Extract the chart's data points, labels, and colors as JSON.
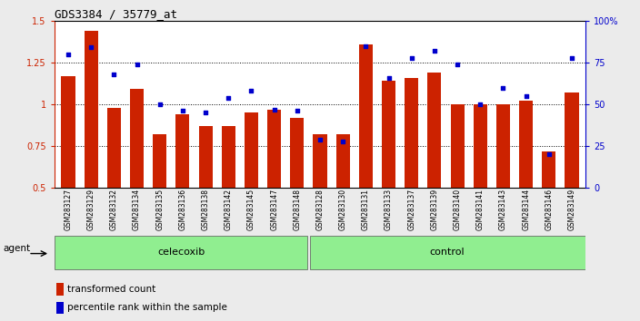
{
  "title": "GDS3384 / 35779_at",
  "samples": [
    "GSM283127",
    "GSM283129",
    "GSM283132",
    "GSM283134",
    "GSM283135",
    "GSM283136",
    "GSM283138",
    "GSM283142",
    "GSM283145",
    "GSM283147",
    "GSM283148",
    "GSM283128",
    "GSM283130",
    "GSM283131",
    "GSM283133",
    "GSM283137",
    "GSM283139",
    "GSM283140",
    "GSM283141",
    "GSM283143",
    "GSM283144",
    "GSM283146",
    "GSM283149"
  ],
  "bar_values": [
    1.17,
    1.44,
    0.98,
    1.09,
    0.82,
    0.94,
    0.87,
    0.87,
    0.95,
    0.97,
    0.92,
    0.82,
    0.82,
    1.36,
    1.14,
    1.16,
    1.19,
    1.0,
    1.0,
    1.0,
    1.02,
    0.72,
    1.07
  ],
  "dot_values": [
    80,
    84,
    68,
    74,
    50,
    46,
    45,
    54,
    58,
    47,
    46,
    29,
    28,
    85,
    66,
    78,
    82,
    74,
    50,
    60,
    55,
    20,
    78
  ],
  "group_labels": [
    "celecoxib",
    "control"
  ],
  "celecoxib_count": 11,
  "control_count": 12,
  "bar_color": "#cc2200",
  "dot_color": "#0000cc",
  "ylim_left": [
    0.5,
    1.5
  ],
  "ylim_right": [
    0,
    100
  ],
  "yticks_left": [
    0.5,
    0.75,
    1.0,
    1.25,
    1.5
  ],
  "ytick_labels_left": [
    "0.5",
    "0.75",
    "1",
    "1.25",
    "1.5"
  ],
  "yticks_right": [
    0,
    25,
    50,
    75,
    100
  ],
  "ytick_labels_right": [
    "0",
    "25",
    "50",
    "75",
    "100%"
  ],
  "grid_lines": [
    0.75,
    1.0,
    1.25
  ],
  "bg_color": "#ebebeb",
  "plot_bg": "#ffffff",
  "legend_items": [
    "transformed count",
    "percentile rank within the sample"
  ],
  "agent_label": "agent",
  "green_color": "#90ee90",
  "gray_color": "#c8c8c8"
}
